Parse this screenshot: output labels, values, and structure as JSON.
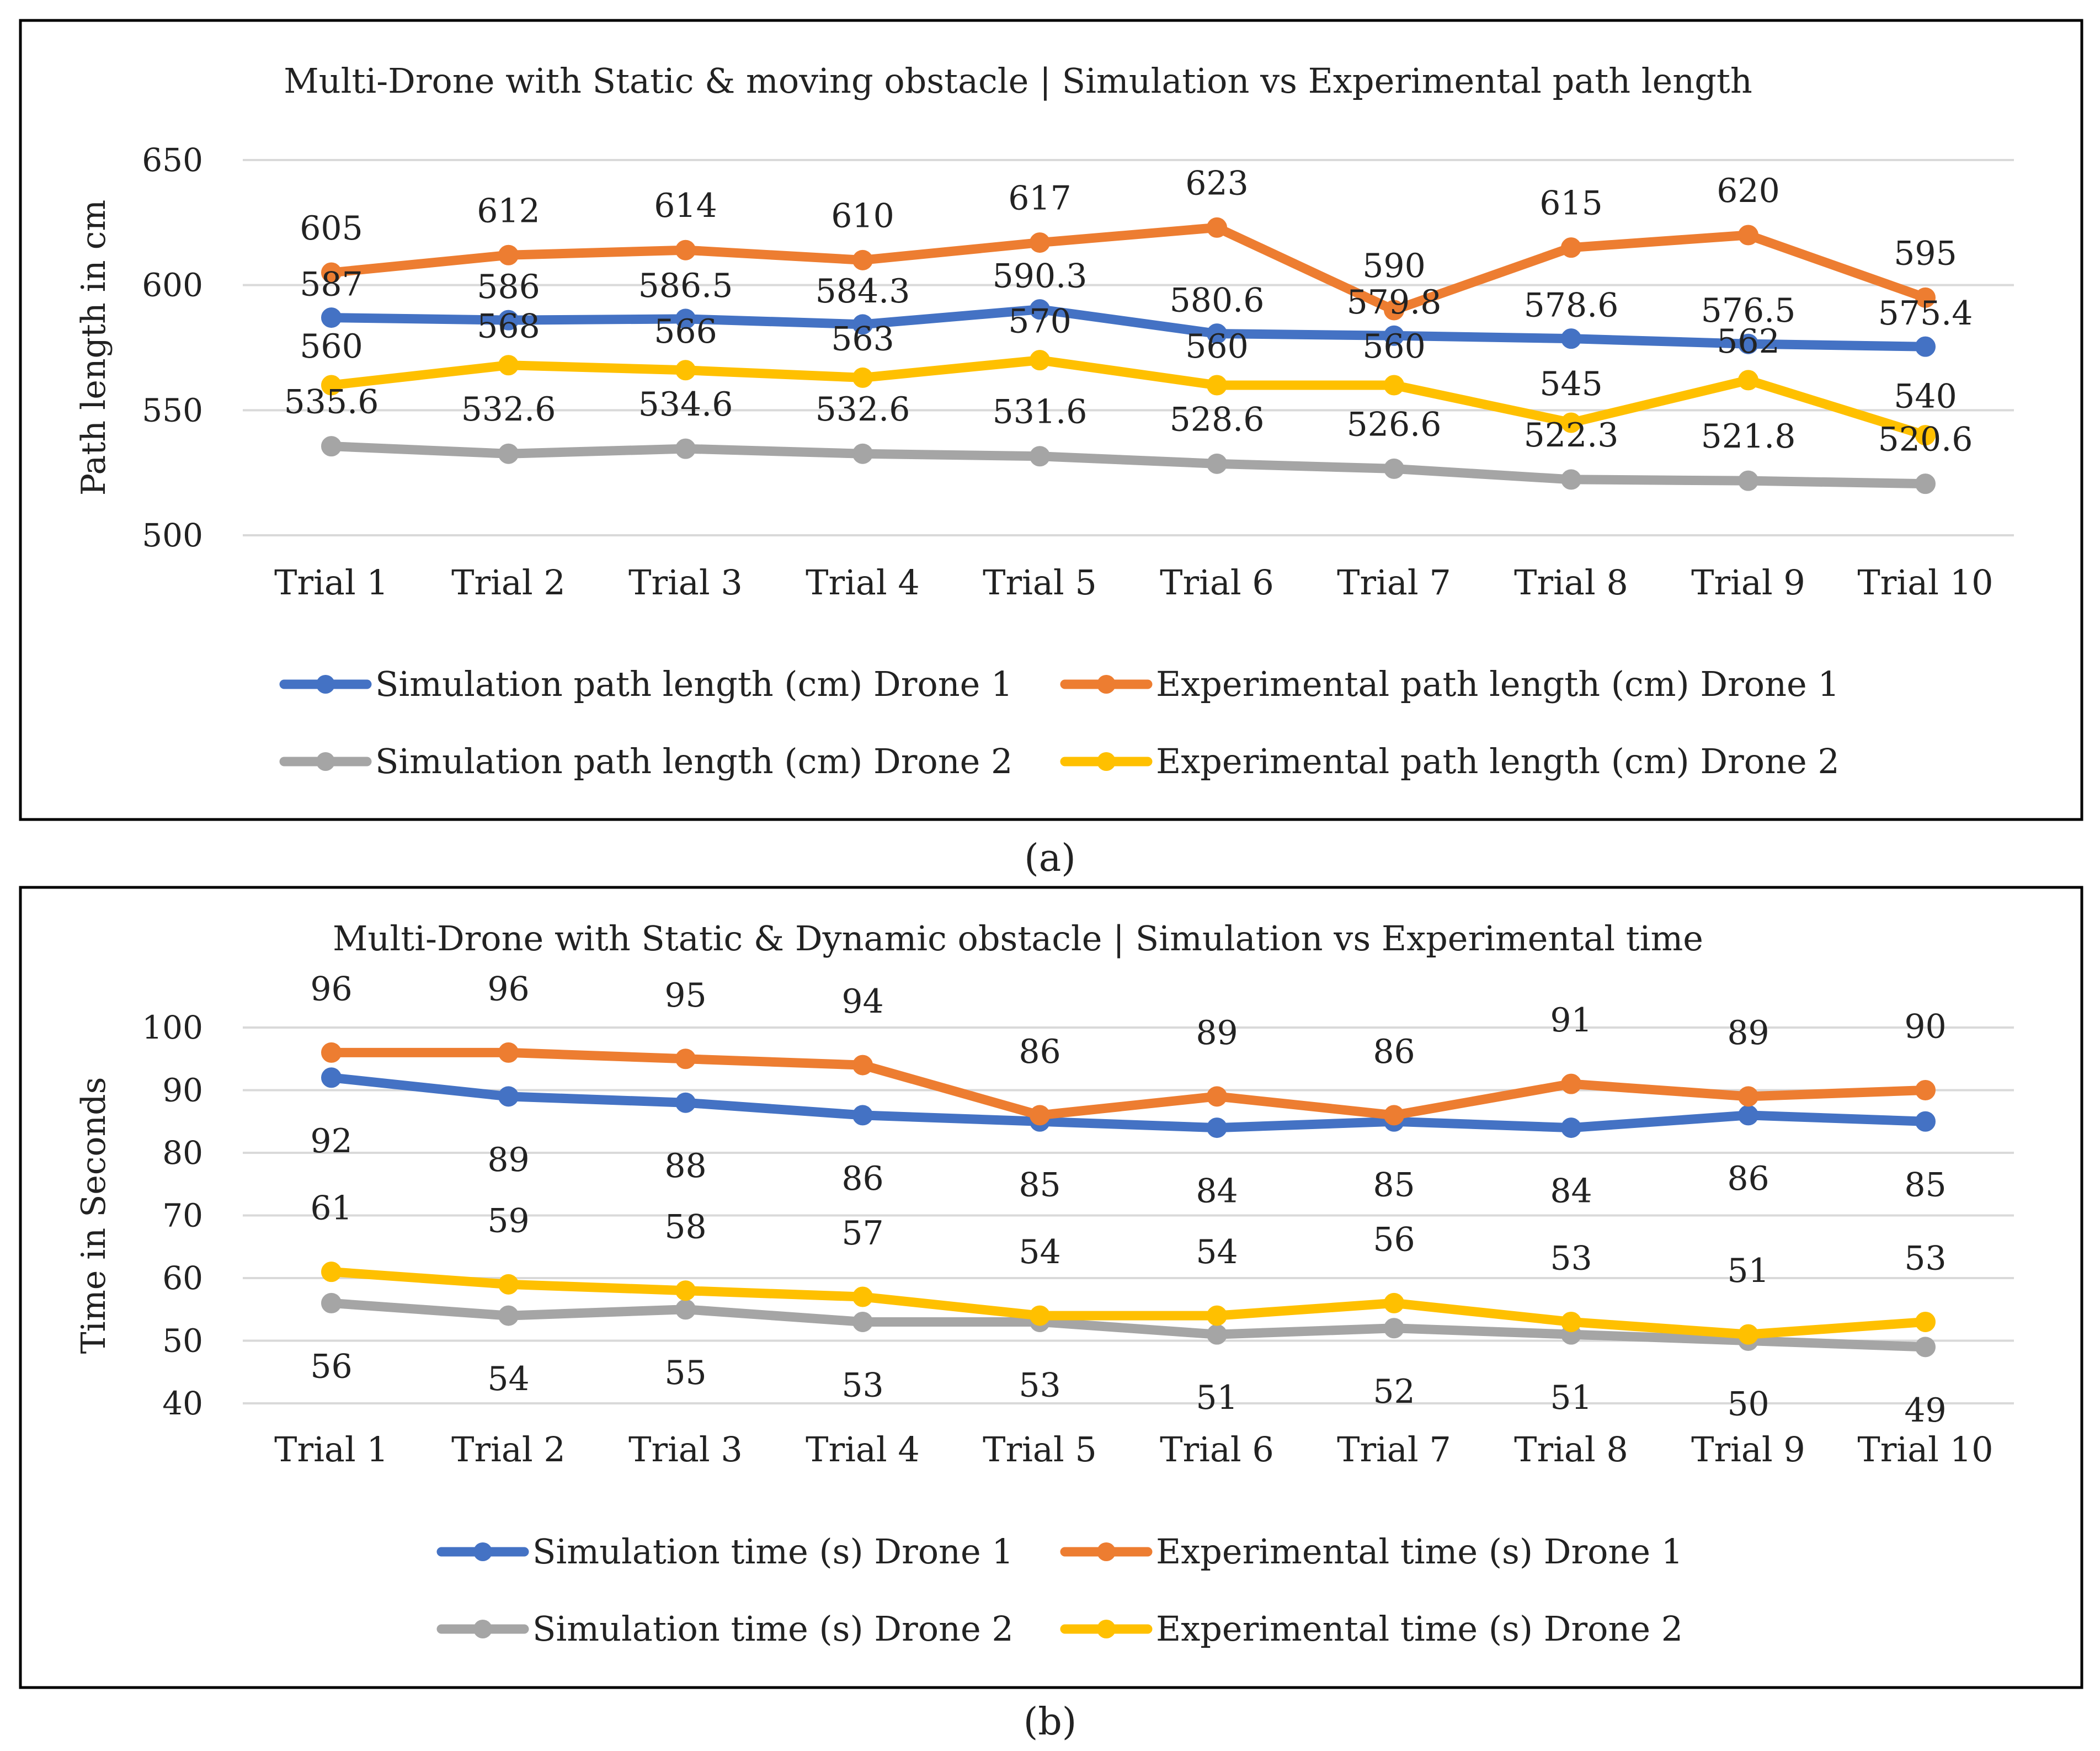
{
  "figure": {
    "panel_a_caption": "(a)",
    "panel_b_caption": "(b)"
  },
  "colors": {
    "blue": "#4472C4",
    "orange": "#ED7D31",
    "gray": "#A5A5A5",
    "yellow": "#FFC000",
    "grid": "#D9D9D9",
    "border": "#000000"
  },
  "chart_data": [
    {
      "type": "line",
      "title": "Multi-Drone with Static & moving  obstacle | Simulation vs Experimental path length",
      "xlabel": "",
      "ylabel": "Path length in cm",
      "ylim": [
        500,
        650
      ],
      "yticks": [
        500,
        550,
        600,
        650
      ],
      "grid": true,
      "legend": "bottom",
      "categories": [
        "Trial 1",
        "Trial 2",
        "Trial 3",
        "Trial 4",
        "Trial 5",
        "Trial 6",
        "Trial 7",
        "Trial 8",
        "Trial 9",
        "Trial 10"
      ],
      "series": [
        {
          "name": "Simulation path length (cm) Drone 1",
          "color": "blue",
          "values": [
            587,
            586,
            586.5,
            584.3,
            590.3,
            580.6,
            579.8,
            578.6,
            576.5,
            575.4
          ],
          "labels": [
            "587",
            "586",
            "586.5",
            "584.3",
            "590.3",
            "580.6",
            "579.8",
            "578.6",
            "576.5",
            "575.4"
          ]
        },
        {
          "name": "Experimental path length (cm) Drone 1",
          "color": "orange",
          "values": [
            605,
            612,
            614,
            610,
            617,
            623,
            590,
            615,
            620,
            595
          ],
          "labels": [
            "605",
            "612",
            "614",
            "610",
            "617",
            "623",
            "590",
            "615",
            "620",
            "595"
          ]
        },
        {
          "name": "Simulation path length (cm) Drone 2",
          "color": "gray",
          "values": [
            535.6,
            532.6,
            534.6,
            532.6,
            531.6,
            528.6,
            526.6,
            522.3,
            521.8,
            520.6
          ],
          "labels": [
            "535.6",
            "532.6",
            "534.6",
            "532.6",
            "531.6",
            "528.6",
            "526.6",
            "522.3",
            "521.8",
            "520.6"
          ]
        },
        {
          "name": "Experimental path length (cm) Drone 2",
          "color": "yellow",
          "values": [
            560,
            568,
            566,
            563,
            570,
            560,
            560,
            545,
            562,
            540
          ],
          "labels": [
            "560",
            "568",
            "566",
            "563",
            "570",
            "560",
            "560",
            "545",
            "562",
            "540"
          ]
        }
      ]
    },
    {
      "type": "line",
      "title": "Multi-Drone with Static & Dynamic obstacle | Simulation vs Experimental time",
      "xlabel": "",
      "ylabel": "Time in Seconds",
      "ylim": [
        40,
        100
      ],
      "yticks": [
        40,
        50,
        60,
        70,
        80,
        90,
        100
      ],
      "grid": true,
      "legend": "bottom",
      "categories": [
        "Trial 1",
        "Trial 2",
        "Trial 3",
        "Trial 4",
        "Trial 5",
        "Trial 6",
        "Trial 7",
        "Trial 8",
        "Trial 9",
        "Trial 10"
      ],
      "series": [
        {
          "name": "Simulation time (s) Drone 1",
          "color": "blue",
          "values": [
            92,
            89,
            88,
            86,
            85,
            84,
            85,
            84,
            86,
            85
          ],
          "labels": [
            "92",
            "89",
            "88",
            "86",
            "85",
            "84",
            "85",
            "84",
            "86",
            "85"
          ]
        },
        {
          "name": "Experimental time (s) Drone 1",
          "color": "orange",
          "values": [
            96,
            96,
            95,
            94,
            86,
            89,
            86,
            91,
            89,
            90
          ],
          "labels": [
            "96",
            "96",
            "95",
            "94",
            "86",
            "89",
            "86",
            "91",
            "89",
            "90"
          ]
        },
        {
          "name": "Simulation time (s) Drone 2",
          "color": "gray",
          "values": [
            56,
            54,
            55,
            53,
            53,
            51,
            52,
            51,
            50,
            49
          ],
          "labels": [
            "56",
            "54",
            "55",
            "53",
            "53",
            "51",
            "52",
            "51",
            "50",
            "49"
          ]
        },
        {
          "name": "Experimental time (s) Drone 2",
          "color": "yellow",
          "values": [
            61,
            59,
            58,
            57,
            54,
            54,
            56,
            53,
            51,
            53
          ],
          "labels": [
            "61",
            "59",
            "58",
            "57",
            "54",
            "54",
            "56",
            "53",
            "51",
            "53"
          ]
        }
      ]
    }
  ]
}
